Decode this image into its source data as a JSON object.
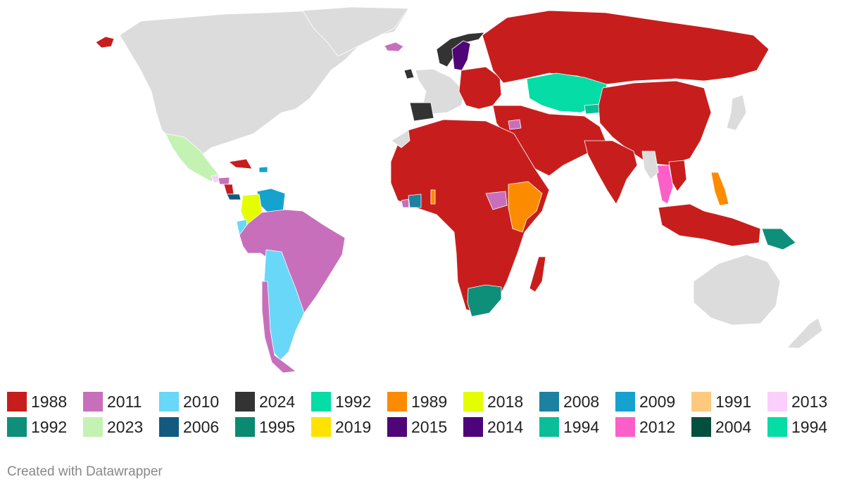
{
  "map": {
    "base_land_color": "#dcdcdc",
    "border_color": "#ffffff",
    "background_color": "#ffffff"
  },
  "legend": {
    "rows": [
      [
        {
          "label": "1988",
          "color": "#c71e1d"
        },
        {
          "label": "2011",
          "color": "#c86fbc"
        },
        {
          "label": "2010",
          "color": "#69d7f7"
        },
        {
          "label": "2024",
          "color": "#333333"
        },
        {
          "label": "1992",
          "color": "#06dca6"
        },
        {
          "label": "1989",
          "color": "#fd8b00"
        },
        {
          "label": "2018",
          "color": "#e4fe00"
        },
        {
          "label": "2008",
          "color": "#1d81a2"
        },
        {
          "label": "2009",
          "color": "#15a2ce"
        },
        {
          "label": "1991",
          "color": "#fec97d"
        },
        {
          "label": "2013",
          "color": "#facffc"
        }
      ],
      [
        {
          "label": "1992",
          "color": "#0e8f79"
        },
        {
          "label": "2023",
          "color": "#c4f2b3"
        },
        {
          "label": "2006",
          "color": "#125a80"
        },
        {
          "label": "1995",
          "color": "#0a8a70"
        },
        {
          "label": "2019",
          "color": "#ffe200"
        },
        {
          "label": "2015",
          "color": "#4f0577"
        },
        {
          "label": "2014",
          "color": "#4e0479"
        },
        {
          "label": "1994",
          "color": "#0cbe98"
        },
        {
          "label": "2012",
          "color": "#fd5fc8"
        },
        {
          "label": "2004",
          "color": "#024f3e"
        },
        {
          "label": "1994",
          "color": "#06dca6"
        }
      ]
    ]
  },
  "credit": "Created with Datawrapper"
}
